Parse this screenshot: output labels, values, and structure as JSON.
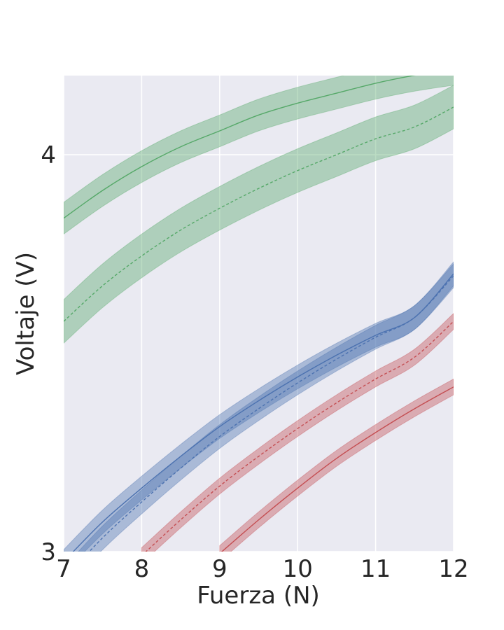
{
  "chart_data": {
    "type": "line",
    "title": "",
    "xlabel": "Fuerza (N)",
    "ylabel": "Voltaje (V)",
    "xlim": [
      7,
      12
    ],
    "ylim": [
      3,
      4.2
    ],
    "xticks": [
      7,
      8,
      9,
      10,
      11,
      12
    ],
    "xtick_labels": [
      "7",
      "8",
      "9",
      "10",
      "11",
      "12"
    ],
    "yticks": [
      3,
      4
    ],
    "ytick_labels": [
      "3",
      "4"
    ],
    "grid": true,
    "background": "#eaeaf2",
    "colors": {
      "green": "#55a868",
      "blue": "#4c72b0",
      "red": "#c44e52"
    },
    "series": [
      {
        "color": "#55a868",
        "style": "solid",
        "band": 0.04,
        "x": [
          7,
          7.5,
          8,
          8.5,
          9,
          9.5,
          10,
          10.5,
          11,
          11.5,
          12
        ],
        "y": [
          3.84,
          3.91,
          3.97,
          4.02,
          4.06,
          4.1,
          4.13,
          4.155,
          4.18,
          4.2,
          4.215
        ]
      },
      {
        "color": "#55a868",
        "style": "dashed",
        "band": 0.055,
        "x": [
          7,
          7.5,
          8,
          8.5,
          9,
          9.5,
          10,
          10.5,
          11,
          11.5,
          12
        ],
        "y": [
          3.58,
          3.67,
          3.745,
          3.81,
          3.865,
          3.915,
          3.96,
          4.0,
          4.04,
          4.07,
          4.12
        ]
      },
      {
        "color": "#4c72b0",
        "style": "solid",
        "band": 0.03,
        "x": [
          7,
          7.5,
          8,
          8.5,
          9,
          9.5,
          10,
          10.5,
          11,
          11.5,
          12
        ],
        "y": [
          2.975,
          3.075,
          3.16,
          3.24,
          3.315,
          3.38,
          3.44,
          3.495,
          3.545,
          3.59,
          3.7
        ]
      },
      {
        "color": "#4c72b0",
        "style": "dashed",
        "band": 0.03,
        "x": [
          7,
          7.5,
          8,
          8.5,
          9,
          9.5,
          10,
          10.5,
          11,
          11.5,
          12
        ],
        "y": [
          2.93,
          3.035,
          3.125,
          3.21,
          3.29,
          3.36,
          3.425,
          3.485,
          3.54,
          3.59,
          3.695
        ]
      },
      {
        "color": "#c44e52",
        "style": "dashed",
        "band": 0.02,
        "x": [
          8,
          8.5,
          9,
          9.5,
          10,
          10.5,
          11,
          11.5,
          12
        ],
        "y": [
          2.99,
          3.08,
          3.165,
          3.24,
          3.31,
          3.375,
          3.435,
          3.49,
          3.58
        ]
      },
      {
        "color": "#c44e52",
        "style": "solid",
        "band": 0.02,
        "x": [
          9,
          9.5,
          10,
          10.5,
          11,
          11.5,
          12
        ],
        "y": [
          2.995,
          3.08,
          3.16,
          3.235,
          3.3,
          3.36,
          3.415
        ]
      }
    ]
  }
}
